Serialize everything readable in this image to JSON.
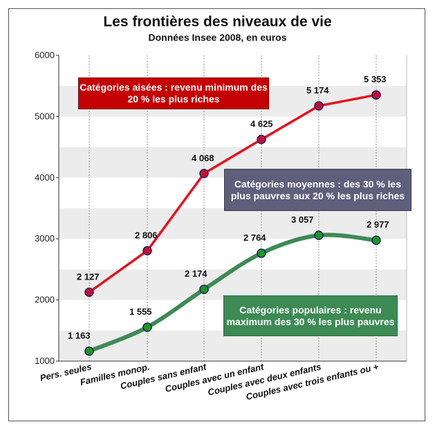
{
  "chart_data": {
    "type": "line",
    "title": "Les frontières des niveaux de vie",
    "subtitle": "Données Insee 2008, en euros",
    "categories": [
      "Pers. seules",
      "Familles monop.",
      "Couples sans enfant",
      "Couples avec un enfant",
      "Couples avec deux enfants",
      "Couples avec trois enfants ou +"
    ],
    "ylim": [
      1000,
      6000
    ],
    "yticks": [
      "1000",
      "2000",
      "3000",
      "4000",
      "5000",
      "6000"
    ],
    "grid": true,
    "series": [
      {
        "values": [
          2127,
          2806,
          4068,
          4625,
          5174,
          5353
        ],
        "labels": [
          "2 127",
          "2 806",
          "4 068",
          "4 625",
          "5 174",
          "5 353"
        ],
        "color": "#e8101e",
        "marker": "#c8102e"
      },
      {
        "values": [
          1163,
          1555,
          2174,
          2764,
          3057,
          2977
        ],
        "labels": [
          "1 163",
          "1 555",
          "2 174",
          "2 764",
          "3 057",
          "2 977"
        ],
        "color": "#3d8a55",
        "marker": "#1a9a1a"
      }
    ],
    "annotations": {
      "aisees": "Catégories aisées : revenu minimum des 20 % les plus riches",
      "moyennes": "Catégories moyennes : des 30 % les plus pauvres aux 20 % les plus riches",
      "populaires": "Catégories populaires : revenu maximum des 30 % les plus pauvres"
    }
  },
  "colors": {
    "band": "#ececec",
    "grid": "#9a9a9a",
    "axis": "#333333"
  }
}
